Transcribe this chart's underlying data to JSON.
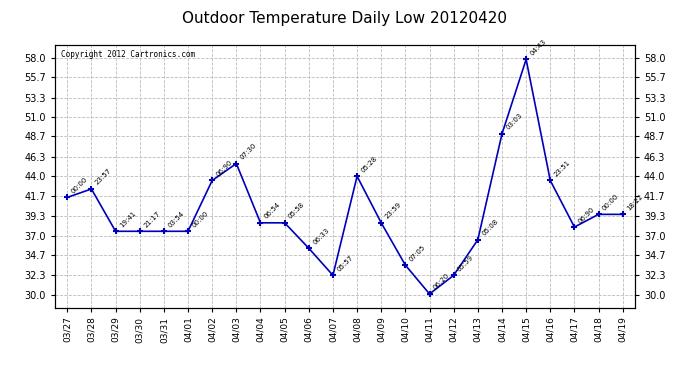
{
  "title": "Outdoor Temperature Daily Low 20120420",
  "copyright": "Copyright 2012 Cartronics.com",
  "x_labels": [
    "03/27",
    "03/28",
    "03/29",
    "03/30",
    "03/31",
    "04/01",
    "04/02",
    "04/03",
    "04/04",
    "04/05",
    "04/06",
    "04/07",
    "04/08",
    "04/09",
    "04/10",
    "04/11",
    "04/12",
    "04/13",
    "04/14",
    "04/15",
    "04/16",
    "04/17",
    "04/18",
    "04/19"
  ],
  "y_values": [
    41.5,
    42.5,
    37.5,
    37.5,
    37.5,
    37.5,
    43.5,
    45.5,
    38.5,
    38.5,
    35.5,
    32.3,
    44.0,
    38.5,
    33.5,
    30.1,
    32.3,
    36.5,
    49.0,
    57.8,
    43.5,
    38.0,
    39.5,
    39.5
  ],
  "annotations": [
    "00:00",
    "23:57",
    "19:41",
    "21:17",
    "03:54",
    "00:00",
    "06:90",
    "07:30",
    "06:54",
    "05:58",
    "06:33",
    "05:57",
    "05:28",
    "23:59",
    "07:05",
    "06:20",
    "05:59",
    "05:08",
    "03:03",
    "04:43",
    "23:51",
    "06:90",
    "00:00",
    "18:22"
  ],
  "line_color": "#0000bb",
  "marker_color": "#0000bb",
  "background_color": "#ffffff",
  "grid_color": "#bbbbbb",
  "ylim": [
    28.5,
    59.5
  ],
  "yticks": [
    30.0,
    32.3,
    34.7,
    37.0,
    39.3,
    41.7,
    44.0,
    46.3,
    48.7,
    51.0,
    53.3,
    55.7,
    58.0
  ]
}
